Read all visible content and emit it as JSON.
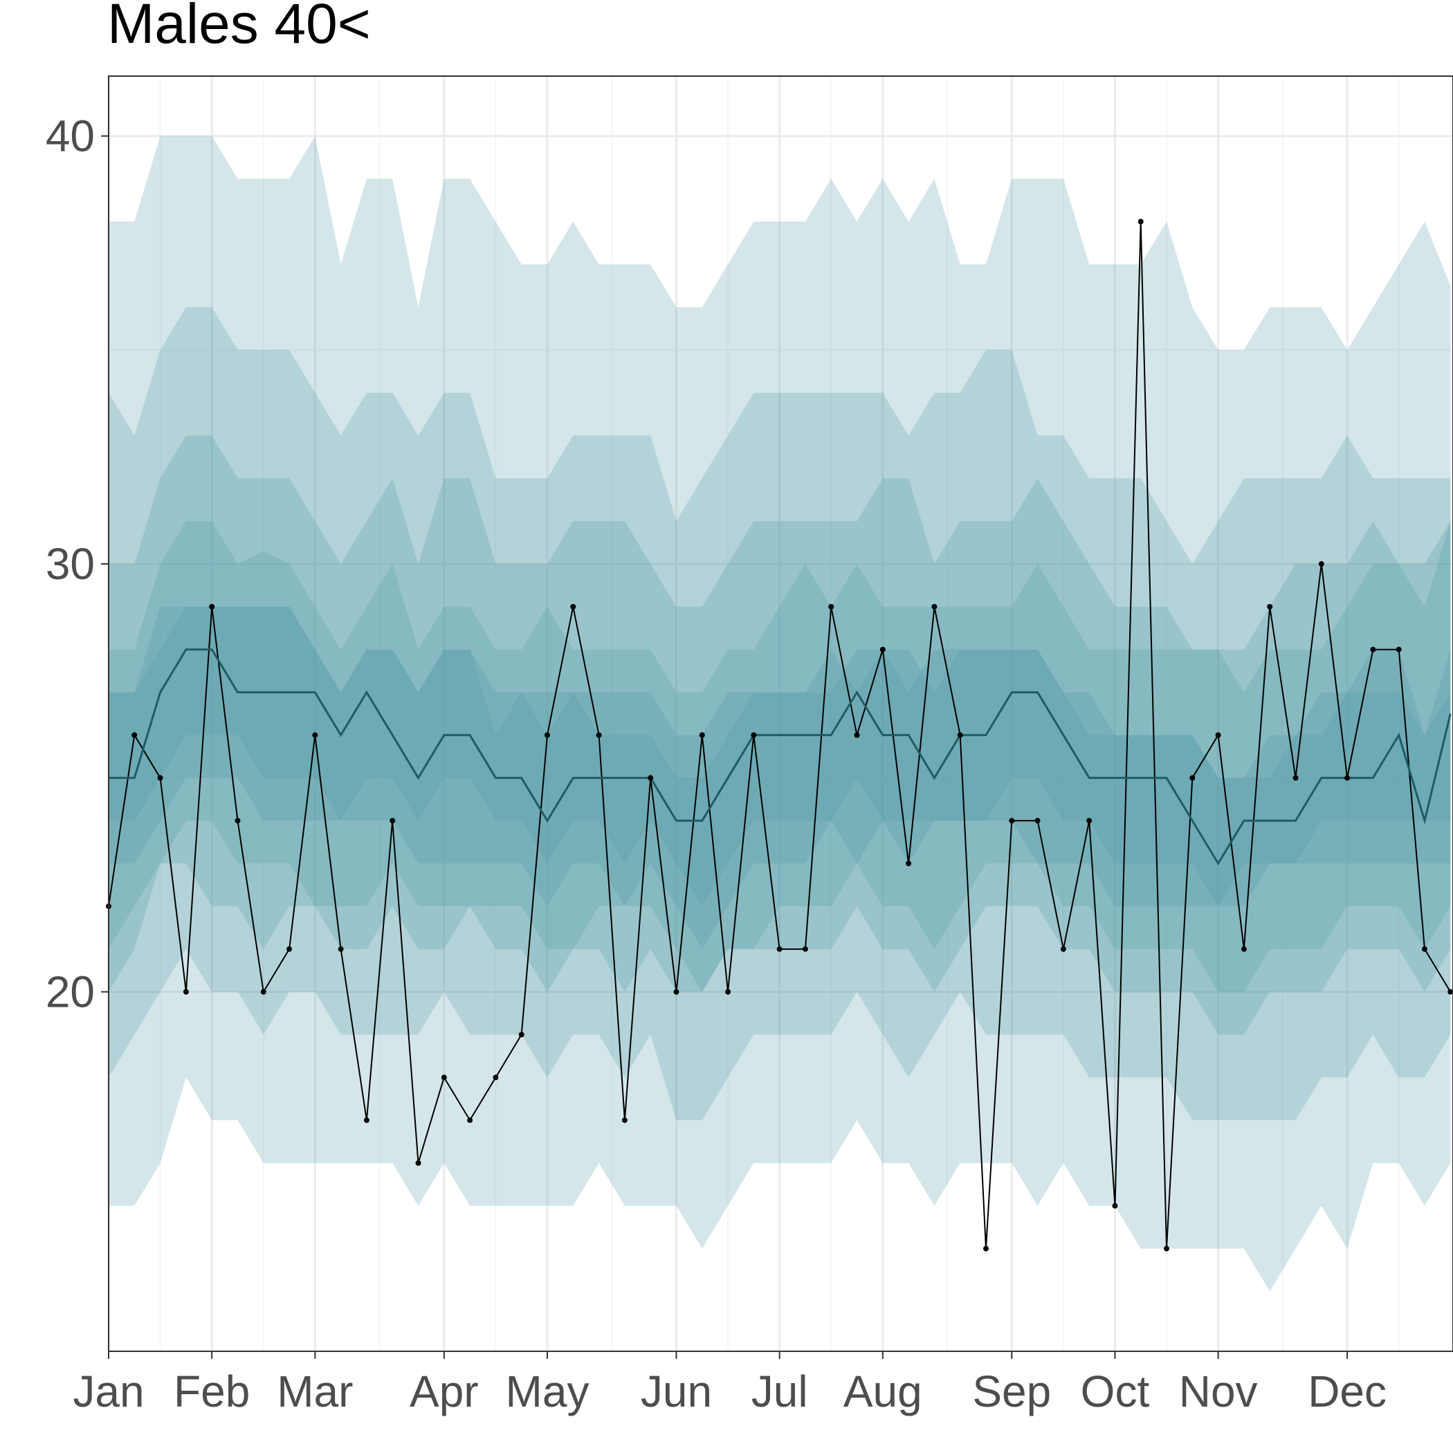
{
  "chart_data": {
    "type": "line",
    "title": "Males 40<",
    "xlabel": "",
    "ylabel": "",
    "x_tick_labels": [
      "Jan",
      "Feb",
      "Mar",
      "Apr",
      "May",
      "Jun",
      "Jul",
      "Aug",
      "Sep",
      "Oct",
      "Nov",
      "Dec"
    ],
    "x_tick_weeks": [
      1,
      5,
      9,
      14,
      18,
      23,
      27,
      31,
      36,
      40,
      44,
      49
    ],
    "x_range": [
      1,
      53.1
    ],
    "y_ticks": [
      20,
      30,
      40
    ],
    "ylim": [
      11.6,
      41.4
    ],
    "grid": true,
    "legend": "none",
    "colors": {
      "band": "#4a96a3",
      "median": "#1e5b66",
      "observed": "#000000",
      "grid_major": "#ebebeb",
      "grid_minor": "#f5f5f5",
      "axis_text": "#4d4d4d"
    },
    "weeks": [
      1,
      2,
      3,
      4,
      5,
      6,
      7,
      8,
      9,
      10,
      11,
      12,
      13,
      14,
      15,
      16,
      17,
      18,
      19,
      20,
      21,
      22,
      23,
      24,
      25,
      26,
      27,
      28,
      29,
      30,
      31,
      32,
      33,
      34,
      35,
      36,
      37,
      38,
      39,
      40,
      41,
      42,
      43,
      44,
      45,
      46,
      47,
      48,
      49,
      50,
      51,
      52,
      53
    ],
    "series": [
      {
        "name": "",
        "role": "observed",
        "values": [
          22,
          26,
          25,
          20,
          29,
          24,
          20,
          21,
          26,
          21,
          17,
          24,
          16,
          18,
          17,
          18,
          19,
          26,
          29,
          26,
          17,
          25,
          20,
          26,
          20,
          26,
          21,
          21,
          29,
          26,
          28,
          23,
          29,
          26,
          14,
          24,
          24,
          21,
          24,
          15,
          38,
          14,
          25,
          26,
          21,
          29,
          25,
          30,
          25,
          28,
          28,
          21,
          20
        ]
      },
      {
        "name": "",
        "role": "median",
        "values": [
          25,
          25,
          27,
          28,
          28,
          27,
          27,
          27,
          27,
          26,
          27,
          26,
          25,
          26,
          26,
          25,
          25,
          24,
          25,
          25,
          25,
          25,
          24,
          24,
          25,
          26,
          26,
          26,
          26,
          27,
          26,
          26,
          25,
          26,
          26,
          27,
          27,
          26,
          25,
          25,
          25,
          25,
          24,
          23,
          24,
          24,
          24,
          25,
          25,
          25,
          26,
          24,
          26.5
        ]
      }
    ],
    "bands": [
      {
        "level": 1,
        "lower": [
          15,
          15,
          16,
          18,
          17,
          17,
          16,
          16,
          16,
          16,
          16,
          16,
          15,
          16,
          15,
          15,
          15,
          15,
          15,
          16,
          15,
          15,
          15,
          14,
          15,
          16,
          16,
          16,
          16,
          17,
          16,
          16,
          15,
          16,
          16,
          16,
          15,
          16,
          15,
          15,
          14,
          14,
          14,
          14,
          14,
          13,
          14,
          15,
          14,
          16,
          16,
          15,
          16
        ],
        "upper": [
          38,
          38,
          40,
          40,
          40,
          39,
          39,
          39,
          40,
          37,
          39,
          39,
          36,
          39,
          39,
          38,
          37,
          37,
          38,
          37,
          37,
          37,
          36,
          36,
          37,
          38,
          38,
          38,
          39,
          38,
          39,
          38,
          39,
          37,
          37,
          39,
          39,
          39,
          37,
          37,
          37,
          38,
          36,
          35,
          35,
          36,
          36,
          36,
          35,
          36,
          37,
          38,
          36.5
        ]
      },
      {
        "level": 2,
        "lower": [
          18,
          19,
          20,
          21,
          20,
          20,
          19,
          20,
          20,
          19,
          19,
          19,
          19,
          20,
          19,
          19,
          19,
          18,
          19,
          19,
          18,
          19,
          17,
          17,
          18,
          19,
          19,
          19,
          19,
          20,
          19,
          18,
          19,
          20,
          19,
          19,
          19,
          19,
          18,
          18,
          18,
          18,
          17,
          17,
          17,
          17,
          17,
          18,
          18,
          19,
          18,
          18,
          19
        ],
        "upper": [
          34,
          33,
          35,
          36,
          36,
          35,
          35,
          35,
          34,
          33,
          34,
          34,
          33,
          34,
          34,
          32,
          32,
          32,
          33,
          33,
          33,
          33,
          31,
          32,
          33,
          34,
          34,
          34,
          34,
          34,
          34,
          33,
          34,
          34,
          35,
          35,
          33,
          33,
          32,
          32,
          32,
          31,
          30,
          31,
          32,
          32,
          32,
          32,
          33,
          32,
          32,
          32,
          32
        ]
      },
      {
        "level": 3,
        "lower": [
          20,
          21,
          23,
          23,
          22,
          22,
          21,
          22,
          22,
          21,
          21,
          22,
          21,
          21,
          22,
          21,
          21,
          20,
          21,
          21,
          20,
          21,
          20,
          20,
          21,
          21,
          21,
          21,
          21,
          22,
          21,
          21,
          20,
          21,
          22,
          22,
          22,
          21,
          21,
          20,
          20,
          20,
          20,
          19,
          19,
          20,
          20,
          20,
          21,
          21,
          21,
          20,
          21
        ],
        "upper": [
          30,
          30,
          32,
          33,
          33,
          32,
          32,
          32,
          31,
          30,
          31,
          32,
          30,
          32,
          32,
          30,
          30,
          30,
          31,
          31,
          31,
          30,
          29,
          29,
          30,
          31,
          31,
          31,
          31,
          31,
          32,
          32,
          30,
          31,
          31,
          31,
          32,
          31,
          30,
          29,
          29,
          29,
          28,
          28,
          28,
          29,
          30,
          30,
          30,
          31,
          30,
          30,
          31
        ]
      },
      {
        "level": 4,
        "lower": [
          21,
          22,
          23,
          24,
          24,
          23,
          23,
          23,
          22,
          22,
          22,
          23,
          22,
          22,
          22,
          22,
          22,
          21,
          21,
          22,
          22,
          22,
          21,
          20,
          21,
          21,
          22,
          22,
          22,
          23,
          22,
          22,
          21,
          22,
          23,
          23,
          23,
          22,
          22,
          21,
          21,
          21,
          21,
          20,
          20,
          21,
          21,
          21,
          22,
          22,
          22,
          21,
          22
        ],
        "upper": [
          28,
          28,
          30,
          31,
          31,
          30,
          30.3,
          30,
          29,
          28,
          29,
          30,
          28,
          29,
          29,
          28,
          28,
          29,
          28,
          28,
          28,
          28,
          27,
          27,
          28,
          28,
          29,
          30,
          29,
          30,
          29,
          29,
          29,
          29,
          29,
          29,
          30,
          29,
          28,
          28,
          28,
          28,
          28,
          28,
          27,
          28,
          28,
          28,
          29,
          30,
          30,
          29,
          31
        ]
      },
      {
        "level": 5,
        "lower": [
          23,
          23,
          24,
          25,
          25,
          25,
          24,
          24,
          24,
          24,
          24,
          24,
          23,
          23,
          23,
          23,
          23,
          22,
          23,
          23,
          22,
          23,
          22,
          21,
          22,
          23,
          23,
          23,
          24,
          23,
          24,
          23,
          24,
          24,
          24,
          24,
          23,
          23,
          23,
          22,
          22,
          22,
          22,
          22,
          22,
          23,
          23,
          23,
          23,
          23,
          23,
          23,
          23
        ],
        "upper": [
          27,
          27,
          29,
          29,
          29,
          29,
          29,
          29,
          28,
          27,
          28,
          28,
          27,
          28,
          28,
          27,
          27,
          27,
          27,
          27,
          27,
          27,
          26,
          26,
          27,
          27,
          27,
          27,
          28,
          27,
          28,
          27,
          28,
          28,
          28,
          28,
          28,
          27,
          27,
          26,
          26,
          26,
          26,
          25,
          25,
          26,
          26,
          27,
          27,
          28,
          28,
          26,
          28
        ]
      },
      {
        "level": 6,
        "lower": [
          24,
          24,
          25,
          26,
          26,
          26,
          25,
          25,
          25,
          24,
          25,
          25,
          24,
          25,
          25,
          24,
          24,
          23,
          24,
          24,
          23,
          24,
          23,
          22,
          23,
          24,
          24,
          24,
          24,
          25,
          24,
          24,
          24,
          24,
          24,
          25,
          25,
          24,
          24,
          23,
          23,
          23,
          23,
          22,
          23,
          23,
          23,
          24,
          24,
          24,
          24,
          24,
          24
        ],
        "upper": [
          27,
          27,
          28,
          29,
          29,
          29,
          29,
          29,
          28,
          27,
          28,
          28,
          27,
          28,
          28,
          26,
          27,
          26,
          27,
          26,
          26,
          26,
          25,
          25,
          26,
          27,
          27,
          27,
          27,
          28,
          28,
          28,
          27,
          28,
          28,
          28,
          28,
          27,
          26,
          26,
          26,
          26,
          26,
          25,
          25,
          25,
          26,
          26,
          27,
          27,
          27,
          26,
          27
        ]
      }
    ]
  }
}
